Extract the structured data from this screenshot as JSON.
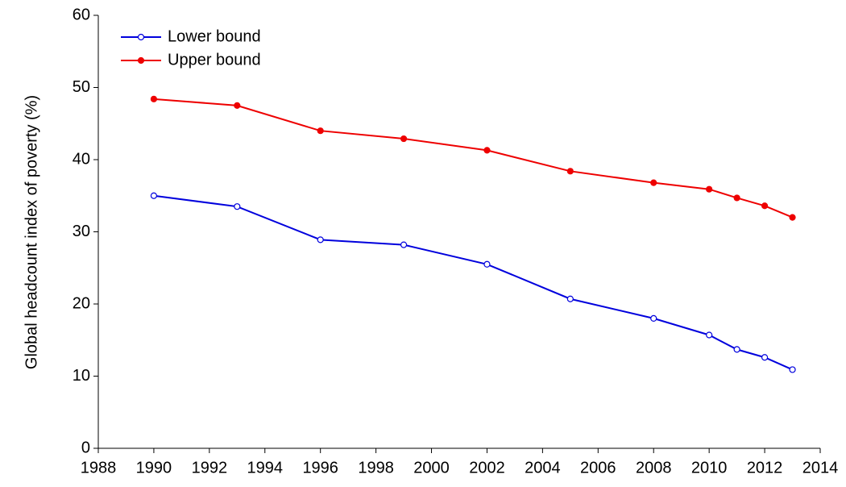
{
  "chart_data": {
    "type": "line",
    "y_label": "Global headcount index of poverty (%)",
    "x": [
      1990,
      1993,
      1996,
      1999,
      2002,
      2005,
      2008,
      2010,
      2011,
      2012,
      2013
    ],
    "series": [
      {
        "name": "Lower bound",
        "color": "#0000dd",
        "marker": "open",
        "values": [
          35.0,
          33.5,
          28.9,
          28.2,
          25.5,
          20.7,
          18.0,
          15.7,
          13.7,
          12.6,
          10.9
        ]
      },
      {
        "name": "Upper bound",
        "color": "#ee0000",
        "marker": "filled",
        "values": [
          48.4,
          47.5,
          44.0,
          42.9,
          41.3,
          38.4,
          36.8,
          35.9,
          34.7,
          33.6,
          32.0
        ]
      }
    ],
    "xlim": [
      1988,
      2014
    ],
    "xticks": [
      1988,
      1990,
      1992,
      1994,
      1996,
      1998,
      2000,
      2002,
      2004,
      2006,
      2008,
      2010,
      2012,
      2014
    ],
    "ylim": [
      0,
      60
    ],
    "yticks": [
      0,
      10,
      20,
      30,
      40,
      50,
      60
    ],
    "grid": false,
    "legend": "upper-left"
  }
}
